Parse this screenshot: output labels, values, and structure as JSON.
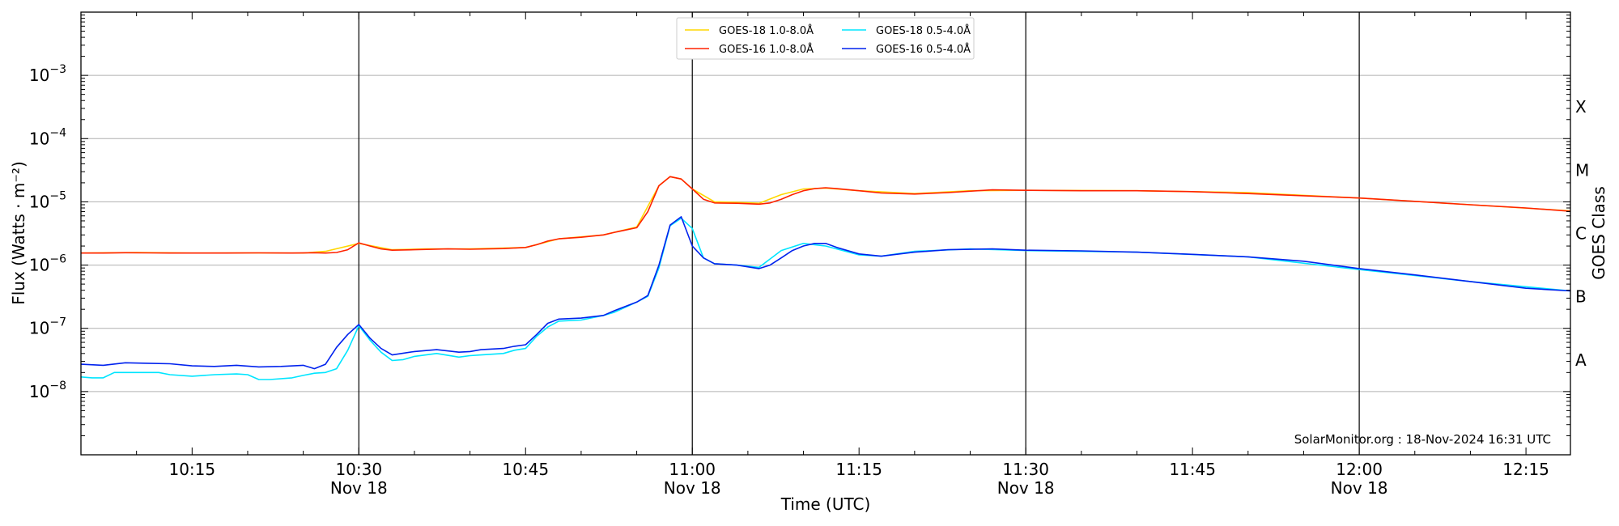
{
  "chart_data": {
    "type": "line",
    "xlabel": "Time (UTC)",
    "ylabel": "Flux (Watts · m⁻²)",
    "y2label": "GOES Class",
    "yscale": "log",
    "ylim": [
      1e-09,
      0.01
    ],
    "xlim": [
      "10:05",
      "12:19"
    ],
    "grid": "horizontal at decades",
    "legend_position": "top-center",
    "credit": "SolarMonitor.org : 18-Nov-2024 16:31 UTC",
    "x_ticks": [
      {
        "time": "10:15",
        "label": "10:15",
        "date": ""
      },
      {
        "time": "10:30",
        "label": "10:30",
        "date": "Nov 18"
      },
      {
        "time": "10:45",
        "label": "10:45",
        "date": ""
      },
      {
        "time": "11:00",
        "label": "11:00",
        "date": "Nov 18"
      },
      {
        "time": "11:15",
        "label": "11:15",
        "date": ""
      },
      {
        "time": "11:30",
        "label": "11:30",
        "date": "Nov 18"
      },
      {
        "time": "11:45",
        "label": "11:45",
        "date": ""
      },
      {
        "time": "12:00",
        "label": "12:00",
        "date": "Nov 18"
      },
      {
        "time": "12:15",
        "label": "12:15",
        "date": ""
      }
    ],
    "y_ticks": [
      {
        "value": 1e-08,
        "base": "10",
        "exp": "−8"
      },
      {
        "value": 1e-07,
        "base": "10",
        "exp": "−7"
      },
      {
        "value": 1e-06,
        "base": "10",
        "exp": "−6"
      },
      {
        "value": 1e-05,
        "base": "10",
        "exp": "−5"
      },
      {
        "value": 0.0001,
        "base": "10",
        "exp": "−4"
      },
      {
        "value": 0.001,
        "base": "10",
        "exp": "−3"
      }
    ],
    "goes_classes": [
      {
        "label": "A",
        "value": 3.16e-08
      },
      {
        "label": "B",
        "value": 3.16e-07
      },
      {
        "label": "C",
        "value": 3.16e-06
      },
      {
        "label": "M",
        "value": 3.16e-05
      },
      {
        "label": "X",
        "value": 0.000316
      }
    ],
    "vertical_lines": [
      "10:30",
      "11:00",
      "11:30",
      "12:00"
    ],
    "series": [
      {
        "name": "GOES-18 1.0-8.0Å",
        "color": "#ffd700",
        "x": [
          "10:05",
          "10:10",
          "10:15",
          "10:20",
          "10:25",
          "10:27",
          "10:30",
          "10:33",
          "10:36",
          "10:40",
          "10:45",
          "10:48",
          "10:52",
          "10:55",
          "10:57",
          "10:58",
          "10:59",
          "11:00",
          "11:02",
          "11:04",
          "11:06",
          "11:08",
          "11:10",
          "11:12",
          "11:15",
          "11:20",
          "11:25",
          "11:30",
          "11:40",
          "11:50",
          "12:00",
          "12:10",
          "12:19"
        ],
        "values": [
          1.55e-06,
          1.58e-06,
          1.55e-06,
          1.56e-06,
          1.55e-06,
          1.65e-06,
          2.2e-06,
          1.75e-06,
          1.8e-06,
          1.8e-06,
          1.9e-06,
          2.6e-06,
          3e-06,
          4e-06,
          1.8e-05,
          2.5e-05,
          2.3e-05,
          1.6e-05,
          1e-05,
          9.8e-06,
          9.5e-06,
          1.3e-05,
          1.6e-05,
          1.65e-05,
          1.5e-05,
          1.35e-05,
          1.5e-05,
          1.52e-05,
          1.5e-05,
          1.4e-05,
          1.15e-05,
          9e-06,
          7.2e-06
        ]
      },
      {
        "name": "GOES-16 1.0-8.0Å",
        "color": "#ff2200",
        "x": [
          "10:05",
          "10:07",
          "10:09",
          "10:11",
          "10:13",
          "10:15",
          "10:18",
          "10:21",
          "10:24",
          "10:26",
          "10:27",
          "10:28",
          "10:29",
          "10:30",
          "10:31",
          "10:32",
          "10:33",
          "10:35",
          "10:38",
          "10:40",
          "10:43",
          "10:45",
          "10:46",
          "10:47",
          "10:48",
          "10:50",
          "10:52",
          "10:53",
          "10:55",
          "10:56",
          "10:57",
          "10:58",
          "10:59",
          "11:00",
          "11:01",
          "11:02",
          "11:04",
          "11:06",
          "11:07",
          "11:08",
          "11:09",
          "11:10",
          "11:11",
          "11:12",
          "11:13",
          "11:15",
          "11:17",
          "11:20",
          "11:23",
          "11:27",
          "11:30",
          "11:35",
          "11:40",
          "11:45",
          "11:50",
          "11:55",
          "12:00",
          "12:05",
          "12:10",
          "12:15",
          "12:19"
        ],
        "values": [
          1.55e-06,
          1.55e-06,
          1.57e-06,
          1.56e-06,
          1.55e-06,
          1.55e-06,
          1.55e-06,
          1.56e-06,
          1.55e-06,
          1.57e-06,
          1.55e-06,
          1.58e-06,
          1.75e-06,
          2.25e-06,
          2e-06,
          1.8e-06,
          1.72e-06,
          1.75e-06,
          1.8e-06,
          1.78e-06,
          1.82e-06,
          1.9e-06,
          2.1e-06,
          2.4e-06,
          2.6e-06,
          2.75e-06,
          3e-06,
          3.3e-06,
          3.9e-06,
          7e-06,
          1.8e-05,
          2.5e-05,
          2.3e-05,
          1.6e-05,
          1.1e-05,
          9.6e-06,
          9.5e-06,
          9.2e-06,
          9.6e-06,
          1.1e-05,
          1.3e-05,
          1.5e-05,
          1.62e-05,
          1.67e-05,
          1.62e-05,
          1.5e-05,
          1.38e-05,
          1.33e-05,
          1.4e-05,
          1.55e-05,
          1.52e-05,
          1.5e-05,
          1.5e-05,
          1.45e-05,
          1.35e-05,
          1.25e-05,
          1.15e-05,
          1.02e-05,
          9e-06,
          8e-06,
          7.1e-06
        ]
      },
      {
        "name": "GOES-18 0.5-4.0Å",
        "color": "#00e5ff",
        "x": [
          "10:05",
          "10:06",
          "10:07",
          "10:08",
          "10:10",
          "10:12",
          "10:13",
          "10:15",
          "10:17",
          "10:19",
          "10:20",
          "10:21",
          "10:22",
          "10:24",
          "10:25",
          "10:26",
          "10:27",
          "10:28",
          "10:29",
          "10:30",
          "10:31",
          "10:32",
          "10:33",
          "10:34",
          "10:35",
          "10:37",
          "10:39",
          "10:40",
          "10:41",
          "10:43",
          "10:44",
          "10:45",
          "10:46",
          "10:47",
          "10:48",
          "10:50",
          "10:52",
          "10:53",
          "10:55",
          "10:56",
          "10:57",
          "10:58",
          "10:59",
          "11:00",
          "11:01",
          "11:02",
          "11:04",
          "11:06",
          "11:08",
          "11:10",
          "11:12",
          "11:15",
          "11:17",
          "11:20",
          "11:25",
          "11:30",
          "11:40",
          "11:50",
          "12:00",
          "12:10",
          "12:19"
        ],
        "values": [
          1.7e-08,
          1.65e-08,
          1.65e-08,
          2e-08,
          2e-08,
          2e-08,
          1.85e-08,
          1.75e-08,
          1.85e-08,
          1.9e-08,
          1.85e-08,
          1.55e-08,
          1.55e-08,
          1.65e-08,
          1.8e-08,
          1.95e-08,
          2e-08,
          2.3e-08,
          4.5e-08,
          1.1e-07,
          6.5e-08,
          4.2e-08,
          3.1e-08,
          3.2e-08,
          3.6e-08,
          4e-08,
          3.5e-08,
          3.7e-08,
          3.8e-08,
          4e-08,
          4.5e-08,
          4.8e-08,
          7.5e-08,
          1.05e-07,
          1.3e-07,
          1.35e-07,
          1.6e-07,
          1.8e-07,
          2.6e-07,
          3.2e-07,
          9e-07,
          4.2e-06,
          5.5e-06,
          3.8e-06,
          1.3e-06,
          1.05e-06,
          1e-06,
          9.2e-07,
          1.7e-06,
          2.2e-06,
          2e-06,
          1.45e-06,
          1.38e-06,
          1.65e-06,
          1.8e-06,
          1.7e-06,
          1.6e-06,
          1.35e-06,
          8.5e-07,
          5.5e-07,
          3.9e-07
        ]
      },
      {
        "name": "GOES-16 0.5-4.0Å",
        "color": "#0022ee",
        "x": [
          "10:05",
          "10:07",
          "10:09",
          "10:11",
          "10:13",
          "10:15",
          "10:17",
          "10:19",
          "10:21",
          "10:23",
          "10:25",
          "10:26",
          "10:27",
          "10:28",
          "10:29",
          "10:30",
          "10:31",
          "10:32",
          "10:33",
          "10:35",
          "10:37",
          "10:39",
          "10:40",
          "10:41",
          "10:43",
          "10:44",
          "10:45",
          "10:46",
          "10:47",
          "10:48",
          "10:50",
          "10:52",
          "10:53",
          "10:55",
          "10:56",
          "10:57",
          "10:58",
          "10:59",
          "11:00",
          "11:01",
          "11:02",
          "11:04",
          "11:06",
          "11:07",
          "11:08",
          "11:09",
          "11:10",
          "11:11",
          "11:12",
          "11:13",
          "11:15",
          "11:17",
          "11:20",
          "11:23",
          "11:27",
          "11:30",
          "11:35",
          "11:40",
          "11:45",
          "11:50",
          "11:55",
          "12:00",
          "12:05",
          "12:10",
          "12:15",
          "12:19"
        ],
        "values": [
          2.7e-08,
          2.6e-08,
          2.85e-08,
          2.8e-08,
          2.75e-08,
          2.55e-08,
          2.5e-08,
          2.6e-08,
          2.45e-08,
          2.5e-08,
          2.6e-08,
          2.3e-08,
          2.7e-08,
          5e-08,
          8e-08,
          1.15e-07,
          7e-08,
          4.8e-08,
          3.8e-08,
          4.3e-08,
          4.6e-08,
          4.2e-08,
          4.3e-08,
          4.6e-08,
          4.8e-08,
          5.2e-08,
          5.5e-08,
          8e-08,
          1.2e-07,
          1.4e-07,
          1.45e-07,
          1.6e-07,
          1.9e-07,
          2.6e-07,
          3.3e-07,
          1e-06,
          4.3e-06,
          5.8e-06,
          2e-06,
          1.3e-06,
          1.05e-06,
          1e-06,
          8.8e-07,
          1e-06,
          1.3e-06,
          1.7e-06,
          2e-06,
          2.2e-06,
          2.2e-06,
          1.9e-06,
          1.5e-06,
          1.38e-06,
          1.6e-06,
          1.75e-06,
          1.8e-06,
          1.72e-06,
          1.68e-06,
          1.6e-06,
          1.48e-06,
          1.35e-06,
          1.15e-06,
          8.8e-07,
          7e-07,
          5.5e-07,
          4.3e-07,
          3.9e-07
        ]
      }
    ]
  }
}
